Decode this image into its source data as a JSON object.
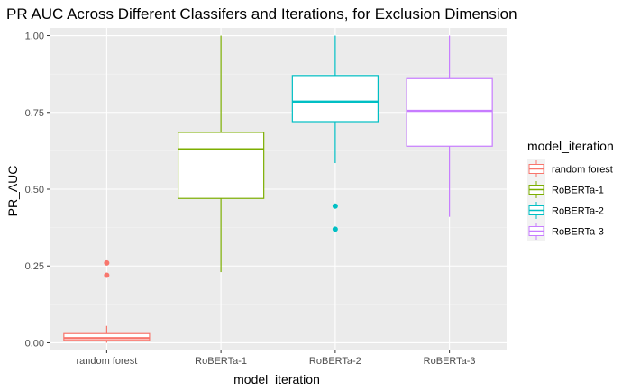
{
  "chart_data": {
    "type": "boxplot",
    "title": "PR AUC Across Different Classifers and Iterations, for Exclusion Dimension",
    "xlabel": "model_iteration",
    "ylabel": "PR_AUC",
    "ylim": [
      -0.025,
      1.025
    ],
    "yticks": [
      0.0,
      0.25,
      0.5,
      0.75,
      1.0
    ],
    "ytick_labels": [
      "0.00",
      "0.25",
      "0.50",
      "0.75",
      "1.00"
    ],
    "grid": true,
    "legend_position": "right",
    "legend_title": "model_iteration",
    "categories": [
      "random forest",
      "RoBERTa-1",
      "RoBERTa-2",
      "RoBERTa-3"
    ],
    "series": [
      {
        "name": "random forest",
        "color": "#F8766D",
        "whisker_low": 0.0,
        "q1": 0.008,
        "median": 0.015,
        "q3": 0.03,
        "whisker_high": 0.055,
        "outliers": [
          0.22,
          0.26
        ]
      },
      {
        "name": "RoBERTa-1",
        "color": "#7CAE00",
        "whisker_low": 0.23,
        "q1": 0.47,
        "median": 0.63,
        "q3": 0.685,
        "whisker_high": 1.0,
        "outliers": []
      },
      {
        "name": "RoBERTa-2",
        "color": "#00BFC4",
        "whisker_low": 0.585,
        "q1": 0.72,
        "median": 0.785,
        "q3": 0.87,
        "whisker_high": 1.0,
        "outliers": [
          0.37,
          0.445
        ]
      },
      {
        "name": "RoBERTa-3",
        "color": "#C77CFF",
        "whisker_low": 0.41,
        "q1": 0.64,
        "median": 0.755,
        "q3": 0.86,
        "whisker_high": 1.0,
        "outliers": []
      }
    ]
  }
}
